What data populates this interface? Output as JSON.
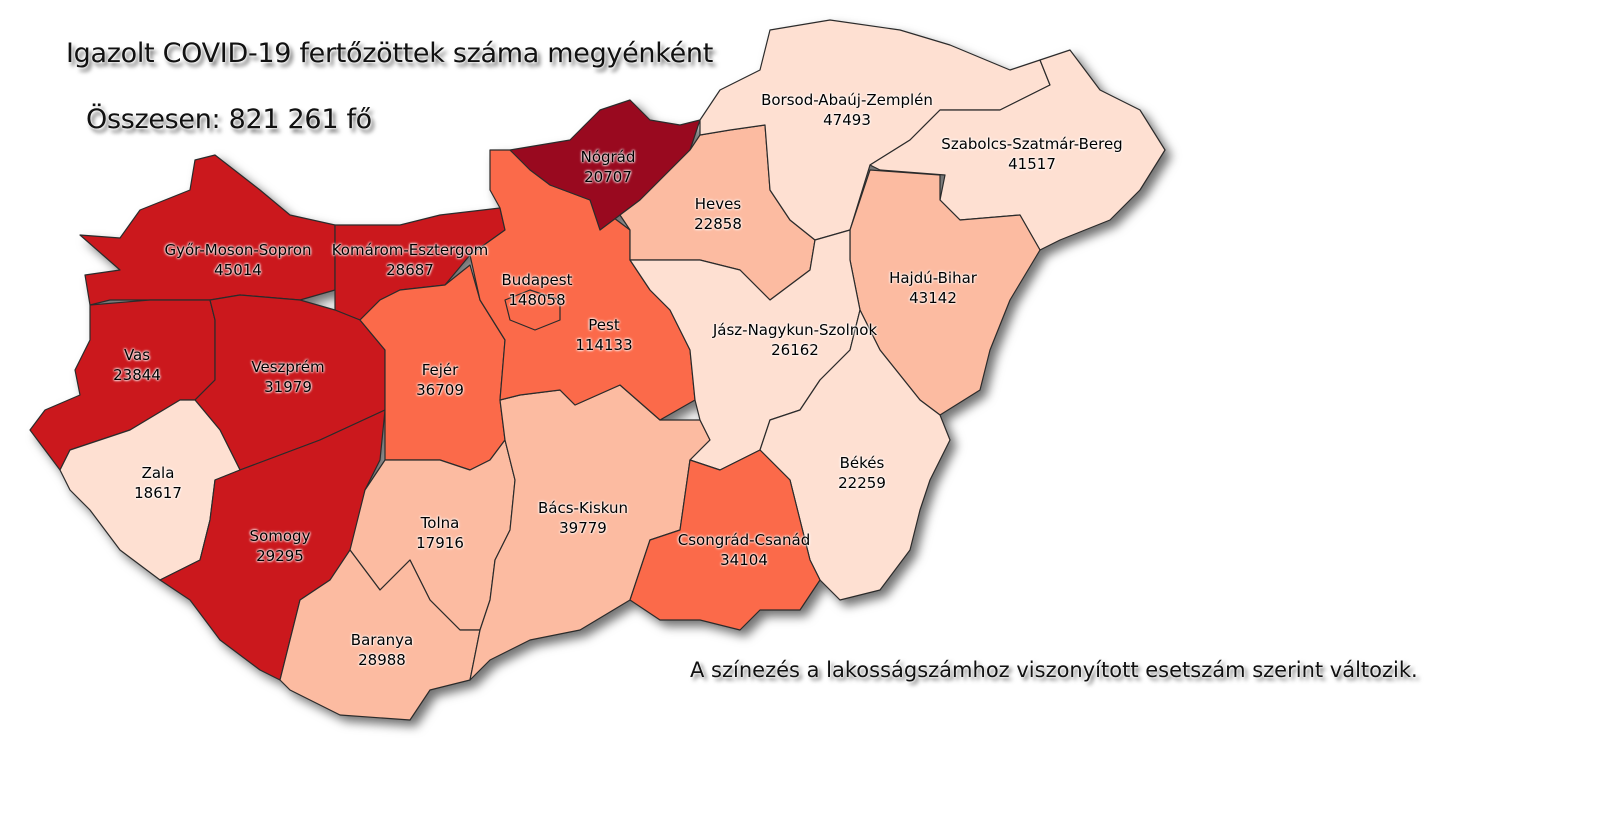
{
  "title": "Igazolt COVID-19 fertőzöttek száma megyénként",
  "total": "Összesen: 821 261 fő",
  "note": "A színezés a lakosságszámhoz viszonyított esetszám szerint változik.",
  "colors": {
    "darkest": "#99091f",
    "dark": "#cb181d",
    "medium": "#fb6a4a",
    "light": "#fcbba1",
    "lightest": "#fee0d2",
    "border": "#2b2b2b"
  },
  "counties": [
    {
      "name": "Győr-Moson-Sopron",
      "value": "45014",
      "shade": "dark"
    },
    {
      "name": "Komárom-Esztergom",
      "value": "28687",
      "shade": "dark"
    },
    {
      "name": "Vas",
      "value": "23844",
      "shade": "dark"
    },
    {
      "name": "Veszprém",
      "value": "31979",
      "shade": "dark"
    },
    {
      "name": "Zala",
      "value": "18617",
      "shade": "lightest"
    },
    {
      "name": "Somogy",
      "value": "29295",
      "shade": "dark"
    },
    {
      "name": "Fejér",
      "value": "36709",
      "shade": "medium"
    },
    {
      "name": "Tolna",
      "value": "17916",
      "shade": "light"
    },
    {
      "name": "Baranya",
      "value": "28988",
      "shade": "light"
    },
    {
      "name": "Bács-Kiskun",
      "value": "39779",
      "shade": "light"
    },
    {
      "name": "Pest",
      "value": "114133",
      "shade": "medium"
    },
    {
      "name": "Budapest",
      "value": "148058",
      "shade": "medium"
    },
    {
      "name": "Nógrád",
      "value": "20707",
      "shade": "darkest"
    },
    {
      "name": "Heves",
      "value": "22858",
      "shade": "light"
    },
    {
      "name": "Borsod-Abaúj-Zemplén",
      "value": "47493",
      "shade": "lightest"
    },
    {
      "name": "Szabolcs-Szatmár-Bereg",
      "value": "41517",
      "shade": "lightest"
    },
    {
      "name": "Hajdú-Bihar",
      "value": "43142",
      "shade": "light"
    },
    {
      "name": "Jász-Nagykun-Szolnok",
      "value": "26162",
      "shade": "lightest"
    },
    {
      "name": "Békés",
      "value": "22259",
      "shade": "lightest"
    },
    {
      "name": "Csongrád-Csanád",
      "value": "34104",
      "shade": "medium"
    }
  ]
}
